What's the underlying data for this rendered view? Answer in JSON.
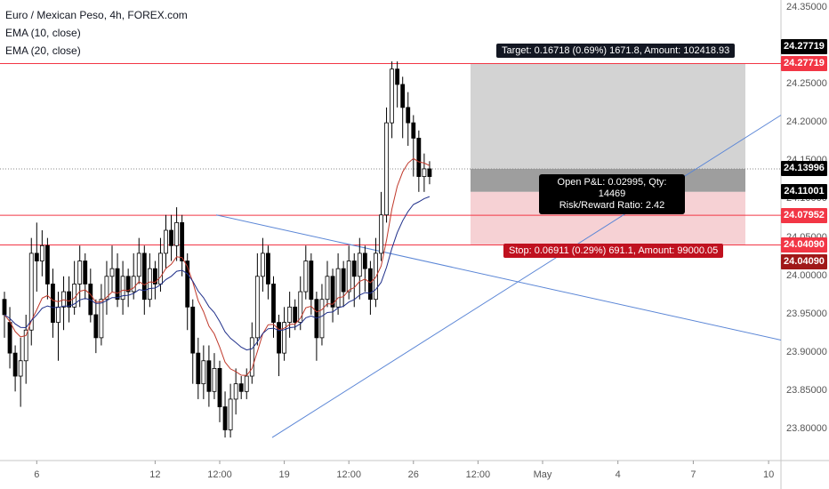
{
  "legend": {
    "title": "Euro / Mexican Peso, 4h, FOREX.com",
    "ema1": "EMA (10, close)",
    "ema2": "EMA (20, close)"
  },
  "position": {
    "target_text": "Target: 0.16718 (0.69%) 1671.8, Amount: 102418.93",
    "stop_text": "Stop: 0.06911 (0.29%) 691.1, Amount: 99000.05",
    "pnl_line1": "Open P&L: 0.02995, Qty: 14469",
    "pnl_line2": "Risk/Reward Ratio: 2.42"
  },
  "price_labels": [
    {
      "text": "24.27719",
      "value": 24.27719,
      "color": "#000000",
      "offset": -1
    },
    {
      "text": "24.27719",
      "value": 24.27719,
      "color": "#f23645",
      "offset": 0
    },
    {
      "text": "24.13996",
      "value": 24.13996,
      "color": "#000000",
      "offset": 0
    },
    {
      "text": "24.11001",
      "value": 24.11001,
      "color": "#000000",
      "offset": 0
    },
    {
      "text": "24.07952",
      "value": 24.07952,
      "color": "#f23645",
      "offset": 0
    },
    {
      "text": "24.04090",
      "value": 24.0409,
      "color": "#f23645",
      "offset": 0
    },
    {
      "text": "24.04090",
      "value": 24.0409,
      "color": "#a01818",
      "offset": 1
    }
  ],
  "chart_data": {
    "type": "candlestick",
    "title": "Euro / Mexican Peso, 4h, FOREX.com",
    "ylim": [
      23.76,
      24.36
    ],
    "y_ticks": [
      "24.35000",
      "24.25000",
      "24.20000",
      "24.15000",
      "24.10000",
      "24.05000",
      "24.00000",
      "23.95000",
      "23.90000",
      "23.85000",
      "23.80000"
    ],
    "y_tick_values": [
      24.35,
      24.25,
      24.2,
      24.15,
      24.1,
      24.05,
      24.0,
      23.95,
      23.9,
      23.85,
      23.8
    ],
    "x_ticks": [
      "6",
      "12",
      "12:00",
      "19",
      "12:00",
      "26",
      "12:00",
      "May",
      "4",
      "7",
      "10"
    ],
    "x_tick_index": [
      6,
      28,
      40,
      52,
      64,
      76,
      88,
      100,
      114,
      128,
      142
    ],
    "series": [
      {
        "name": "EMA (10, close)",
        "color": "#c0392b"
      },
      {
        "name": "EMA (20, close)",
        "color": "#1f2f8a"
      }
    ],
    "candles": [
      [
        23.97,
        23.95,
        23.92,
        23.98
      ],
      [
        23.94,
        23.9,
        23.88,
        23.96
      ],
      [
        23.9,
        23.87,
        23.85,
        23.91
      ],
      [
        23.87,
        23.89,
        23.83,
        23.92
      ],
      [
        23.89,
        23.93,
        23.86,
        23.95
      ],
      [
        23.93,
        24.03,
        23.91,
        24.05
      ],
      [
        24.03,
        24.02,
        23.98,
        24.07
      ],
      [
        24.02,
        24.04,
        24.0,
        24.06
      ],
      [
        24.04,
        23.99,
        23.97,
        24.05
      ],
      [
        23.99,
        23.94,
        23.92,
        24.01
      ],
      [
        23.94,
        23.96,
        23.89,
        23.98
      ],
      [
        23.96,
        23.98,
        23.93,
        24.0
      ],
      [
        23.98,
        23.96,
        23.94,
        24.0
      ],
      [
        23.96,
        23.99,
        23.95,
        24.02
      ],
      [
        23.99,
        24.02,
        23.96,
        24.04
      ],
      [
        24.02,
        23.99,
        23.97,
        24.03
      ],
      [
        23.99,
        23.95,
        23.94,
        24.01
      ],
      [
        23.95,
        23.92,
        23.9,
        23.97
      ],
      [
        23.92,
        23.97,
        23.91,
        23.99
      ],
      [
        23.97,
        24.0,
        23.95,
        24.02
      ],
      [
        24.0,
        24.01,
        23.98,
        24.04
      ],
      [
        24.01,
        23.97,
        23.96,
        24.03
      ],
      [
        23.97,
        24.0,
        23.95,
        24.02
      ],
      [
        24.0,
        23.98,
        23.96,
        24.01
      ],
      [
        23.98,
        24.0,
        23.97,
        24.03
      ],
      [
        24.0,
        24.03,
        23.99,
        24.05
      ],
      [
        24.03,
        23.97,
        23.95,
        24.04
      ],
      [
        23.97,
        24.01,
        23.96,
        24.03
      ],
      [
        24.01,
        23.99,
        23.97,
        24.02
      ],
      [
        23.99,
        24.03,
        23.98,
        24.05
      ],
      [
        24.03,
        24.06,
        24.01,
        24.08
      ],
      [
        24.06,
        24.04,
        24.02,
        24.08
      ],
      [
        24.04,
        24.07,
        24.02,
        24.09
      ],
      [
        24.07,
        24.02,
        24.0,
        24.08
      ],
      [
        24.02,
        23.96,
        23.93,
        24.03
      ],
      [
        23.96,
        23.9,
        23.86,
        23.97
      ],
      [
        23.9,
        23.86,
        23.84,
        23.92
      ],
      [
        23.86,
        23.89,
        23.84,
        23.91
      ],
      [
        23.89,
        23.85,
        23.83,
        23.91
      ],
      [
        23.85,
        23.88,
        23.84,
        23.9
      ],
      [
        23.88,
        23.83,
        23.81,
        23.89
      ],
      [
        23.83,
        23.8,
        23.79,
        23.85
      ],
      [
        23.8,
        23.84,
        23.79,
        23.86
      ],
      [
        23.84,
        23.86,
        23.82,
        23.88
      ],
      [
        23.86,
        23.85,
        23.84,
        23.87
      ],
      [
        23.85,
        23.87,
        23.84,
        23.88
      ],
      [
        23.87,
        23.92,
        23.86,
        23.94
      ],
      [
        23.92,
        24.0,
        23.91,
        24.03
      ],
      [
        24.0,
        24.03,
        23.98,
        24.05
      ],
      [
        24.03,
        23.99,
        23.97,
        24.04
      ],
      [
        23.99,
        23.94,
        23.92,
        24.0
      ],
      [
        23.94,
        23.9,
        23.87,
        23.95
      ],
      [
        23.9,
        23.94,
        23.89,
        23.96
      ],
      [
        23.94,
        23.96,
        23.92,
        23.98
      ],
      [
        23.96,
        23.94,
        23.93,
        23.97
      ],
      [
        23.94,
        23.98,
        23.93,
        24.0
      ],
      [
        23.98,
        24.02,
        23.97,
        24.04
      ],
      [
        24.02,
        23.97,
        23.95,
        24.03
      ],
      [
        23.97,
        23.92,
        23.89,
        23.98
      ],
      [
        23.92,
        23.97,
        23.91,
        23.99
      ],
      [
        23.97,
        24.0,
        23.96,
        24.02
      ],
      [
        24.0,
        23.96,
        23.94,
        24.01
      ],
      [
        23.96,
        24.01,
        23.95,
        24.03
      ],
      [
        24.01,
        23.98,
        23.96,
        24.02
      ],
      [
        23.98,
        24.02,
        23.97,
        24.04
      ],
      [
        24.02,
        24.0,
        23.96,
        24.03
      ],
      [
        24.0,
        24.03,
        23.97,
        24.05
      ],
      [
        24.03,
        24.01,
        23.98,
        24.04
      ],
      [
        24.01,
        23.97,
        23.95,
        24.02
      ],
      [
        23.97,
        24.03,
        23.96,
        24.05
      ],
      [
        24.03,
        24.08,
        24.02,
        24.11
      ],
      [
        24.08,
        24.2,
        24.07,
        24.22
      ],
      [
        24.2,
        24.27,
        24.18,
        24.28
      ],
      [
        24.27,
        24.25,
        24.22,
        24.28
      ],
      [
        24.25,
        24.22,
        24.18,
        24.26
      ],
      [
        24.22,
        24.2,
        24.17,
        24.24
      ],
      [
        24.2,
        24.18,
        24.13,
        24.21
      ],
      [
        24.18,
        24.13,
        24.11,
        24.19
      ],
      [
        24.13,
        24.14,
        24.11,
        24.16
      ],
      [
        24.14,
        24.13,
        24.12,
        24.15
      ]
    ]
  },
  "drawings": {
    "h_lines": [
      24.27719,
      24.07952,
      24.0409
    ],
    "current_price": 24.13996
  }
}
